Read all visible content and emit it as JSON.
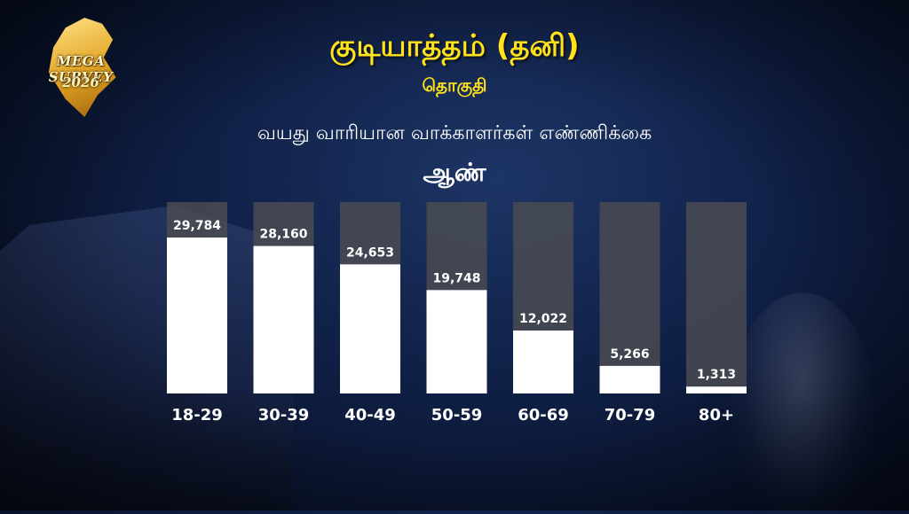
{
  "logo": {
    "brand": "MEGA SURVEY",
    "year": "2026"
  },
  "header": {
    "title": "குடியாத்தம் (தனி)",
    "subtitle": "தொகுதி",
    "heading": "வயது வாரியான வாக்காளர்கள் எண்ணிக்கை",
    "gender": "ஆண்"
  },
  "colors": {
    "title": "#ffe21a",
    "bar_fill": "#ffffff",
    "bar_track": "#4a4b52",
    "text": "#ffffff"
  },
  "chart_data": {
    "type": "bar",
    "title": "வயது வாரியான வாக்காளர்கள் எண்ணிக்கை",
    "subtitle": "ஆண்",
    "categories": [
      "18-29",
      "30-39",
      "40-49",
      "50-59",
      "60-69",
      "70-79",
      "80+"
    ],
    "values": [
      29784,
      28160,
      24653,
      19748,
      12022,
      5266,
      1313
    ],
    "value_labels": [
      "29,784",
      "28,160",
      "24,653",
      "19,748",
      "12,022",
      "5,266",
      "1,313"
    ],
    "ylim": [
      0,
      35000
    ],
    "grid": false,
    "legend": "none"
  }
}
